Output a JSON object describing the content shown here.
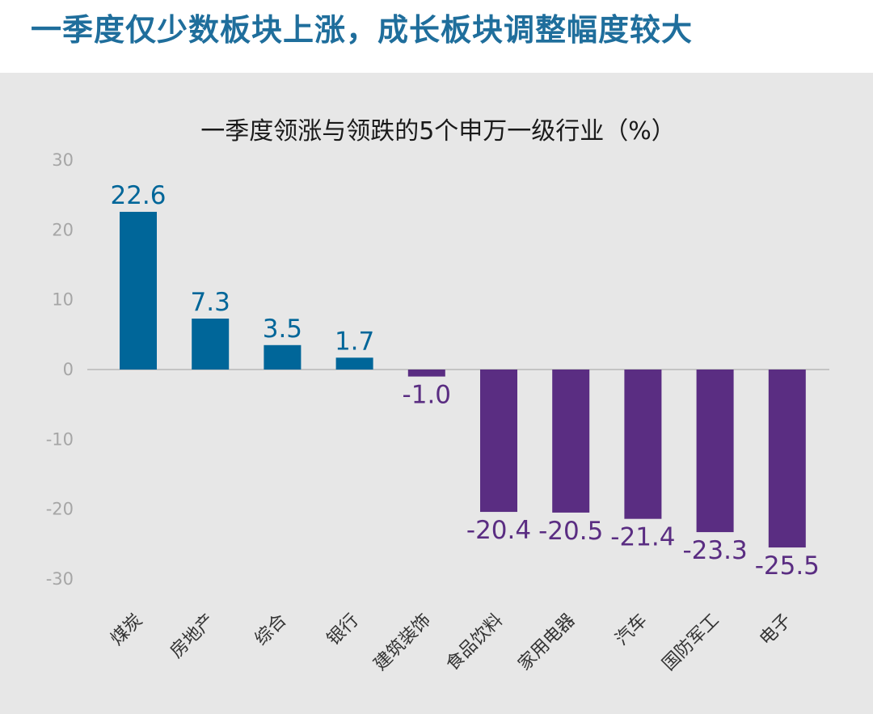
{
  "headline": "一季度仅少数板块上涨，成长板块调整幅度较大",
  "colors": {
    "positive": "#006699",
    "negative": "#5a2d82",
    "headline": "#1f6e9c",
    "panel": "#e7e7e7",
    "tick": "#a6a6a6"
  },
  "chart_data": {
    "type": "bar",
    "title": "一季度领涨与领跌的5个申万一级行业（%）",
    "categories": [
      "煤炭",
      "房地产",
      "综合",
      "银行",
      "建筑装饰",
      "食品饮料",
      "家用电器",
      "汽车",
      "国防军工",
      "电子"
    ],
    "values": [
      22.6,
      7.3,
      3.5,
      1.7,
      -1.0,
      -20.4,
      -20.5,
      -21.4,
      -23.3,
      -25.5
    ],
    "value_labels": [
      "22.6",
      "7.3",
      "3.5",
      "1.7",
      "-1.0",
      "-20.4",
      "-20.5",
      "-21.4",
      "-23.3",
      "-25.5"
    ],
    "yticks": [
      30,
      20,
      10,
      0,
      -10,
      -20,
      -30
    ],
    "ylim": [
      -30,
      30
    ],
    "xlabel": "",
    "ylabel": ""
  }
}
